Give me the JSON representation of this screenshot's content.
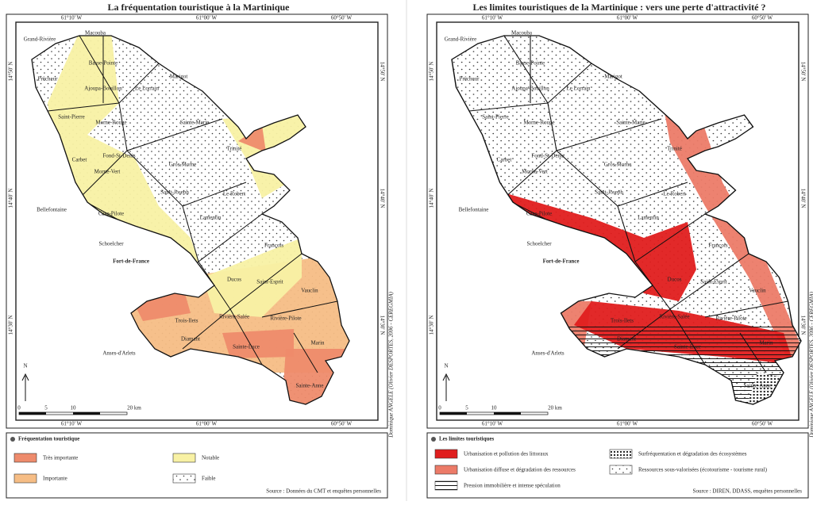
{
  "maps": [
    {
      "title": "La fréquentation touristique à la Martinique",
      "lon_labels": [
        "61°10' W",
        "61°00' W",
        "60°50' W"
      ],
      "lat_labels": [
        "14°50' N",
        "14°40' N",
        "14°30' N"
      ],
      "communes": [
        "Grand-Rivière",
        "Macouba",
        "Basse-Pointe",
        "Ajoupa-Bouillon",
        "Prêcheur",
        "Le Lorrain",
        "Marigot",
        "Saint-Pierre",
        "Morne-Rouge",
        "Sainte-Marie",
        "Trinité",
        "Fond-St-Denis",
        "Carbet",
        "Morne-Vert",
        "Gros-Morne",
        "Saint-Joseph",
        "Le Robert",
        "Bellefontaine",
        "Case-Pilote",
        "Lamentin",
        "Schoelcher",
        "Fort-de-France",
        "François",
        "Ducos",
        "Saint-Esprit",
        "Vauclin",
        "Trois-Ilets",
        "Rivière-Salée",
        "Rivière-Pilote",
        "Diamant",
        "Anses-d'Arlets",
        "Sainte-Luce",
        "Marin",
        "Sainte-Anne"
      ],
      "north": "N",
      "scale": [
        "0",
        "5",
        "10",
        "20 km"
      ],
      "credit": "Dominique ANGELE (Olivier DESPORTES, 2006 - CEREGMIA)",
      "legend": {
        "title": "Fréquentation touristique",
        "items": [
          {
            "label": "Très importante",
            "fill": "#ee8b6c"
          },
          {
            "label": "Importante",
            "fill": "#f6bd85"
          },
          {
            "label": "Notable",
            "fill": "#f8f1a4"
          },
          {
            "label": "Faible",
            "fill": "dots"
          }
        ],
        "source": "Source : Données du CMT et enquêtes personnelles"
      }
    },
    {
      "title": "Les limites touristiques de la Martinique : vers une perte d'attractivité ?",
      "lon_labels": [
        "61°10' W",
        "61°00' W",
        "60°50' W"
      ],
      "lat_labels": [
        "14°50' N",
        "14°40' N",
        "14°30' N"
      ],
      "communes": [
        "Grand-Rivière",
        "Macouba",
        "Basse-Pointe",
        "Ajoupa-Bouillon",
        "Prêcheur",
        "Le Lorrain",
        "Marigot",
        "Saint-Pierre",
        "Morne-Rouge",
        "Sainte-Marie",
        "Trinité",
        "Fond-St-Denis",
        "Carbet",
        "Morne-Vert",
        "Gros-Morne",
        "Saint-Joseph",
        "Le Robert",
        "Bellefontaine",
        "Case-Pilote",
        "Lamentin",
        "Schoelcher",
        "Fort-de-France",
        "François",
        "Ducos",
        "Saint-Esprit",
        "Vauclin",
        "Trois-Ilets",
        "Rivière-Salée",
        "Rivière-Pilote",
        "Diamant",
        "Anses-d'Arlets",
        "Sainte-Luce",
        "Marin",
        "Sainte-Anne"
      ],
      "north": "N",
      "scale": [
        "0",
        "5",
        "10",
        "20 km"
      ],
      "credit": "Dominique ANGELE (Olivier DESPORTES, 2006 - CEREGMIA)",
      "legend": {
        "title": "Les limites touristiques",
        "items": [
          {
            "label": "Urbanisation et pollution des littoraux",
            "fill": "#e01e1e"
          },
          {
            "label": "Urbanisation diffuse et dégradation des ressources",
            "fill": "#ec7b68"
          },
          {
            "label": "Pression immobilière et intense spéculation",
            "fill": "lines"
          },
          {
            "label": "Surfréquentation et dégradation des écosystèmes",
            "fill": "dense-dots"
          },
          {
            "label": "Ressources sous-valorisées (écotourisme - tourisme rural)",
            "fill": "dots"
          }
        ],
        "source": "Source : DIREN, DDASS, enquêtes personnelles"
      }
    }
  ]
}
